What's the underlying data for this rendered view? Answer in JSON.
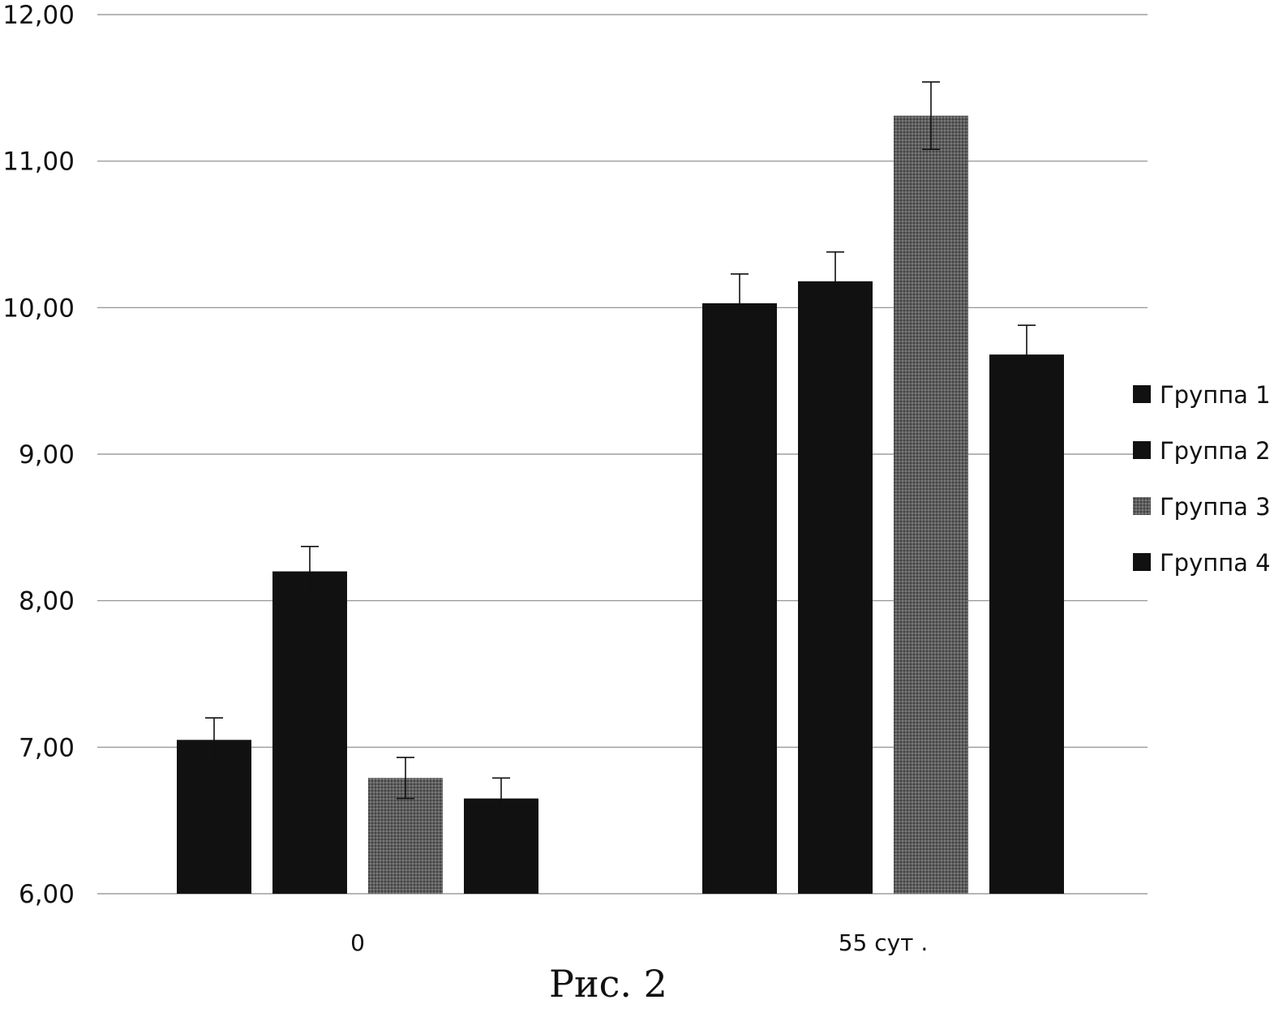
{
  "chart_data": {
    "type": "bar",
    "categories": [
      "0",
      "55 сут ."
    ],
    "y_ticks": [
      "6,00",
      "7,00",
      "8,00",
      "9,00",
      "10,00",
      "11,00",
      "12,00"
    ],
    "ylim": [
      6,
      12
    ],
    "grid": true,
    "legend_position": "right",
    "series": [
      {
        "name": "Группа 1",
        "color": "#111111",
        "values": [
          7.05,
          10.03
        ],
        "errors": [
          0.15,
          0.2
        ]
      },
      {
        "name": "Группа 2",
        "color": "#111111",
        "values": [
          8.2,
          10.18
        ],
        "errors": [
          0.17,
          0.2
        ]
      },
      {
        "name": "Группа 3",
        "color": "#5a5a5a",
        "values": [
          6.79,
          11.31
        ],
        "errors": [
          0.14,
          0.23
        ]
      },
      {
        "name": "Группа 4",
        "color": "#111111",
        "values": [
          6.65,
          9.68
        ],
        "errors": [
          0.14,
          0.2
        ]
      }
    ]
  },
  "caption": "Рис. 2"
}
